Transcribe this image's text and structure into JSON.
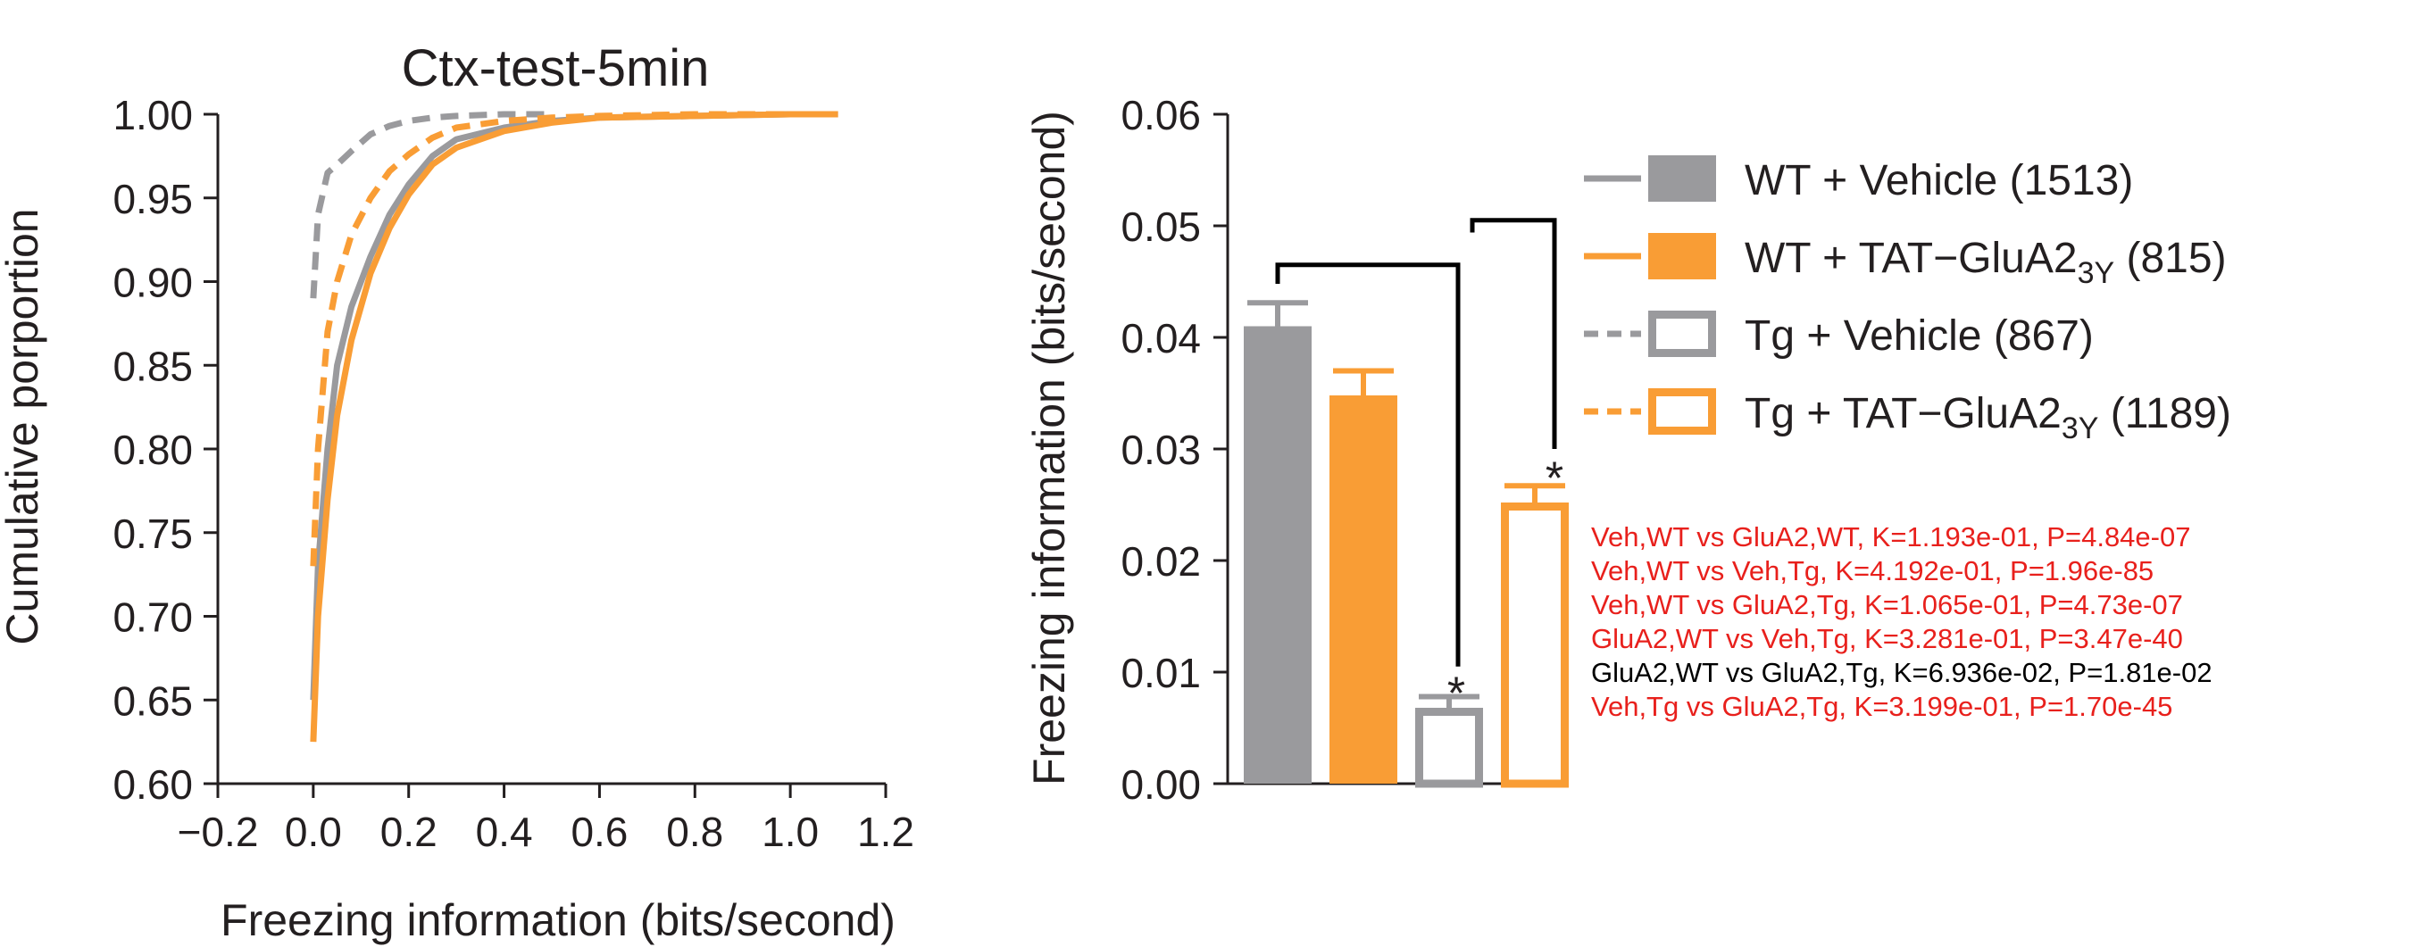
{
  "chart_data": [
    {
      "type": "line",
      "title": "Ctx-test-5min",
      "xlabel": "Freezing information (bits/second)",
      "ylabel": "Cumulative porportion",
      "xlim": [
        -0.2,
        1.2
      ],
      "ylim": [
        0.6,
        1.0
      ],
      "xticks": [
        "−0.2",
        "0.0",
        "0.2",
        "0.4",
        "0.6",
        "0.8",
        "1.0",
        "1.2"
      ],
      "yticks": [
        "0.60",
        "0.65",
        "0.70",
        "0.75",
        "0.80",
        "0.85",
        "0.90",
        "0.95",
        "1.00"
      ],
      "grid": false,
      "series": [
        {
          "name": "WT + Vehicle (1513)",
          "color": "#9a9a9d",
          "dash": "solid",
          "x": [
            0.0,
            0.01,
            0.03,
            0.05,
            0.08,
            0.12,
            0.16,
            0.2,
            0.25,
            0.3,
            0.4,
            0.5,
            0.6,
            0.8,
            1.0,
            1.1
          ],
          "y": [
            0.65,
            0.73,
            0.8,
            0.85,
            0.885,
            0.915,
            0.94,
            0.958,
            0.975,
            0.985,
            0.992,
            0.996,
            0.998,
            0.999,
            1.0,
            1.0
          ]
        },
        {
          "name": "WT + TAT−GluA2 3Y (815)",
          "color": "#f99d35",
          "dash": "solid",
          "x": [
            0.0,
            0.01,
            0.03,
            0.05,
            0.08,
            0.12,
            0.16,
            0.2,
            0.25,
            0.3,
            0.4,
            0.5,
            0.6,
            0.8,
            1.0,
            1.1
          ],
          "y": [
            0.625,
            0.7,
            0.77,
            0.82,
            0.865,
            0.905,
            0.932,
            0.952,
            0.97,
            0.98,
            0.99,
            0.995,
            0.998,
            0.999,
            1.0,
            1.0
          ]
        },
        {
          "name": "Tg + Vehicle (867)",
          "color": "#9a9a9d",
          "dash": "dashed",
          "x": [
            0.0,
            0.01,
            0.03,
            0.05,
            0.08,
            0.12,
            0.16,
            0.2,
            0.25,
            0.3,
            0.4,
            0.5
          ],
          "y": [
            0.89,
            0.94,
            0.965,
            0.97,
            0.978,
            0.988,
            0.993,
            0.996,
            0.998,
            0.999,
            1.0,
            1.0
          ]
        },
        {
          "name": "Tg + TAT−GluA2 3Y (1189)",
          "color": "#f99d35",
          "dash": "dashed",
          "x": [
            0.0,
            0.01,
            0.03,
            0.05,
            0.08,
            0.12,
            0.16,
            0.2,
            0.25,
            0.3,
            0.4,
            0.5,
            0.6,
            0.8,
            1.0
          ],
          "y": [
            0.73,
            0.8,
            0.87,
            0.9,
            0.928,
            0.95,
            0.966,
            0.976,
            0.986,
            0.992,
            0.996,
            0.998,
            0.999,
            1.0,
            1.0
          ]
        }
      ]
    },
    {
      "type": "bar",
      "ylabel": "Freezing information (bits/second)",
      "ylim": [
        0.0,
        0.06
      ],
      "yticks": [
        "0.00",
        "0.01",
        "0.02",
        "0.03",
        "0.04",
        "0.05",
        "0.06"
      ],
      "grid": false,
      "legend_placement": "right",
      "categories": [
        "WT + Vehicle (1513)",
        "WT + TAT−GluA2 3Y (815)",
        "Tg + Vehicle (867)",
        "Tg + TAT−GluA2 3Y (1189)"
      ],
      "values": [
        0.041,
        0.0348,
        0.0068,
        0.0252
      ],
      "errors": [
        0.0021,
        0.0022,
        0.001,
        0.0015
      ],
      "bar_styles": [
        {
          "fill": "#9a9a9d",
          "stroke": "#9a9a9d",
          "filled": true
        },
        {
          "fill": "#f99d35",
          "stroke": "#f99d35",
          "filled": true
        },
        {
          "fill": "#ffffff",
          "stroke": "#9a9a9d",
          "filled": false
        },
        {
          "fill": "#ffffff",
          "stroke": "#f99d35",
          "filled": false
        }
      ],
      "significance": [
        {
          "from": 0,
          "to": 2,
          "label": "*"
        },
        {
          "from": 2,
          "to": 3,
          "label": "*"
        }
      ],
      "legend": [
        {
          "name": "WT + Vehicle",
          "sub": "",
          "count": " (1513)",
          "color": "#9a9a9d",
          "dash": "solid",
          "filled": true
        },
        {
          "name": "WT + TAT−GluA2",
          "sub": "3Y",
          "count": " (815)",
          "color": "#f99d35",
          "dash": "solid",
          "filled": true
        },
        {
          "name": "Tg + Vehicle",
          "sub": "",
          "count": " (867)",
          "color": "#9a9a9d",
          "dash": "dashed",
          "filled": false
        },
        {
          "name": "Tg + TAT−GluA2",
          "sub": "3Y",
          "count": " (1189)",
          "color": "#f99d35",
          "dash": "dashed",
          "filled": false
        }
      ]
    }
  ],
  "stats": [
    {
      "text": "Veh,WT vs GluA2,WT, K=1.193e-01, P=4.84e-07",
      "color": "#e8201c"
    },
    {
      "text": "Veh,WT vs Veh,Tg, K=4.192e-01, P=1.96e-85",
      "color": "#e8201c"
    },
    {
      "text": "Veh,WT vs GluA2,Tg, K=1.065e-01, P=4.73e-07",
      "color": "#e8201c"
    },
    {
      "text": "GluA2,WT vs Veh,Tg, K=3.281e-01, P=3.47e-40",
      "color": "#e8201c"
    },
    {
      "text": "GluA2,WT vs GluA2,Tg, K=6.936e-02, P=1.81e-02",
      "color": "#000000"
    },
    {
      "text": "Veh,Tg vs GluA2,Tg, K=3.199e-01, P=1.70e-45",
      "color": "#e8201c"
    }
  ]
}
